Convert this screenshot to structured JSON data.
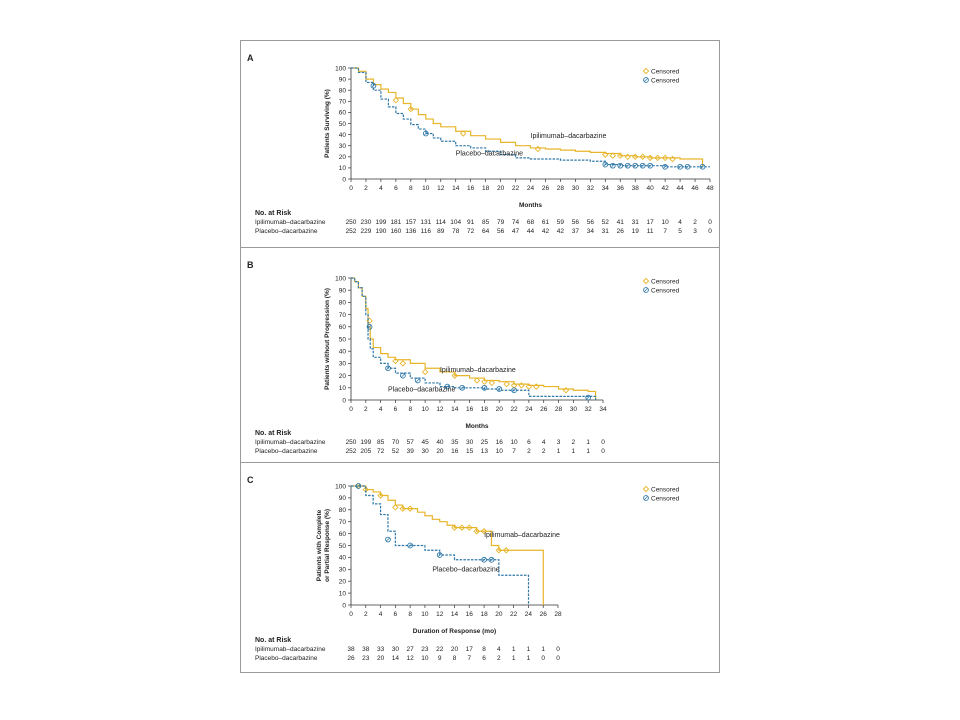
{
  "legend_label": "Censored",
  "risk_header": "No. at Risk",
  "colors": {
    "ipilimumab": "#e7b52a",
    "placebo": "#2f78a8"
  },
  "chart_data": [
    {
      "panel": "A",
      "type": "line",
      "ylabel": "Patients Surviving (%)",
      "xlabel": "Months",
      "xlim": [
        0,
        48
      ],
      "ylim": [
        0,
        100
      ],
      "xticks": [
        0,
        2,
        4,
        6,
        8,
        10,
        12,
        14,
        16,
        18,
        20,
        22,
        24,
        26,
        28,
        30,
        32,
        34,
        36,
        38,
        40,
        42,
        44,
        46,
        48
      ],
      "yticks": [
        0,
        10,
        20,
        30,
        40,
        50,
        60,
        70,
        80,
        90,
        100
      ],
      "legend": "top-right",
      "series": [
        {
          "name": "Ipilimumab–dacarbazine",
          "key": "ipilimumab",
          "dashed": false,
          "x": [
            0,
            1,
            2,
            3,
            4,
            5,
            6,
            7,
            8,
            9,
            10,
            11,
            12,
            14,
            16,
            18,
            20,
            22,
            24,
            26,
            28,
            30,
            32,
            34,
            36,
            38,
            40,
            42,
            44,
            46,
            47
          ],
          "y": [
            100,
            97,
            90,
            85,
            81,
            78,
            73,
            68,
            63,
            58,
            54,
            50,
            47,
            43,
            39,
            36,
            33,
            30,
            28,
            27,
            26,
            25,
            24,
            23,
            21,
            20,
            19,
            19,
            18,
            18,
            11
          ],
          "censored": [
            [
              6,
              71
            ],
            [
              8,
              63
            ],
            [
              15,
              41
            ],
            [
              25,
              27
            ],
            [
              34,
              22
            ],
            [
              35,
              21
            ],
            [
              36,
              21
            ],
            [
              37,
              20
            ],
            [
              38,
              20
            ],
            [
              39,
              20
            ],
            [
              40,
              19
            ],
            [
              41,
              19
            ],
            [
              42,
              19
            ],
            [
              43,
              18
            ]
          ]
        },
        {
          "name": "Placebo–dacarbazine",
          "key": "placebo",
          "dashed": true,
          "x": [
            0,
            1,
            2,
            3,
            4,
            5,
            6,
            7,
            8,
            9,
            10,
            11,
            12,
            14,
            16,
            18,
            20,
            22,
            24,
            26,
            28,
            30,
            32,
            34,
            36,
            38,
            40,
            42,
            44,
            46,
            48
          ],
          "y": [
            100,
            96,
            87,
            80,
            72,
            65,
            59,
            54,
            49,
            45,
            41,
            37,
            34,
            30,
            28,
            25,
            22,
            19,
            18,
            18,
            17,
            17,
            16,
            13,
            12,
            12,
            12,
            11,
            11,
            11,
            11
          ],
          "censored": [
            [
              3,
              84
            ],
            [
              10,
              41
            ],
            [
              34,
              13
            ],
            [
              35,
              12
            ],
            [
              36,
              12
            ],
            [
              37,
              12
            ],
            [
              38,
              12
            ],
            [
              39,
              12
            ],
            [
              40,
              12
            ],
            [
              42,
              11
            ],
            [
              44,
              11
            ],
            [
              45,
              11
            ],
            [
              47,
              11
            ]
          ]
        }
      ],
      "annotations": [
        {
          "text": "Ipilimumab–dacarbazine",
          "x": 24,
          "y": 37
        },
        {
          "text": "Placebo–dacarbazine",
          "x": 14,
          "y": 21
        }
      ],
      "at_risk": {
        "times": [
          0,
          2,
          4,
          6,
          8,
          10,
          12,
          14,
          16,
          18,
          20,
          22,
          24,
          26,
          28,
          30,
          32,
          34,
          36,
          38,
          40,
          42,
          44,
          46,
          48
        ],
        "rows": [
          {
            "label": "Ipilimumab–dacarbazine",
            "values": [
              "250",
              "230",
              "199",
              "181",
              "157",
              "131",
              "114",
              "104",
              "91",
              "85",
              "79",
              "74",
              "68",
              "61",
              "59",
              "56",
              "56",
              "52",
              "41",
              "31",
              "17",
              "10",
              "4",
              "2",
              "0"
            ]
          },
          {
            "label": "Placebo–dacarbazine",
            "values": [
              "252",
              "229",
              "190",
              "160",
              "136",
              "116",
              "89",
              "78",
              "72",
              "64",
              "56",
              "47",
              "44",
              "42",
              "42",
              "37",
              "34",
              "31",
              "26",
              "19",
              "11",
              "7",
              "5",
              "3",
              "0"
            ]
          }
        ]
      }
    },
    {
      "panel": "B",
      "type": "line",
      "ylabel": "Patients without Progression (%)",
      "xlabel": "Months",
      "xlim": [
        0,
        34
      ],
      "ylim": [
        0,
        100
      ],
      "xticks": [
        0,
        2,
        4,
        6,
        8,
        10,
        12,
        14,
        16,
        18,
        20,
        22,
        24,
        26,
        28,
        30,
        32,
        34
      ],
      "yticks": [
        0,
        10,
        20,
        30,
        40,
        50,
        60,
        70,
        80,
        90,
        100
      ],
      "legend": "top-right",
      "series": [
        {
          "name": "Ipilimumab–dacarbazine",
          "key": "ipilimumab",
          "dashed": false,
          "x": [
            0,
            0.5,
            1,
            1.5,
            2,
            2.3,
            2.6,
            3,
            4,
            5,
            6,
            8,
            10,
            12,
            14,
            16,
            18,
            20,
            22,
            24,
            26,
            28,
            30,
            32,
            33
          ],
          "y": [
            100,
            97,
            92,
            85,
            75,
            60,
            50,
            43,
            38,
            35,
            33,
            30,
            26,
            23,
            20,
            18,
            16,
            15,
            13,
            12,
            11,
            9,
            8,
            7,
            0
          ],
          "censored": [
            [
              2.5,
              65
            ],
            [
              6,
              32
            ],
            [
              7,
              30
            ],
            [
              10,
              23
            ],
            [
              14,
              20
            ],
            [
              17,
              16
            ],
            [
              18,
              15
            ],
            [
              19,
              14
            ],
            [
              21,
              13
            ],
            [
              22,
              12
            ],
            [
              23,
              12
            ],
            [
              24,
              11
            ],
            [
              25,
              11
            ],
            [
              29,
              8
            ]
          ]
        },
        {
          "name": "Placebo–dacarbazine",
          "key": "placebo",
          "dashed": true,
          "x": [
            0,
            0.5,
            1,
            1.5,
            2,
            2.3,
            2.6,
            3,
            4,
            5,
            6,
            8,
            10,
            12,
            14,
            16,
            18,
            20,
            22,
            24,
            26,
            32,
            33
          ],
          "y": [
            100,
            97,
            92,
            85,
            70,
            50,
            42,
            35,
            30,
            26,
            22,
            18,
            14,
            11,
            10,
            10,
            9,
            8,
            8,
            3,
            3,
            3,
            0
          ],
          "censored": [
            [
              2.5,
              60
            ],
            [
              5,
              26
            ],
            [
              7,
              20
            ],
            [
              9,
              16
            ],
            [
              13,
              11
            ],
            [
              15,
              10
            ],
            [
              18,
              10
            ],
            [
              20,
              9
            ],
            [
              22,
              8
            ],
            [
              32,
              2
            ]
          ]
        }
      ],
      "annotations": [
        {
          "text": "Ipilimumab–dacarbazine",
          "x": 12,
          "y": 23
        },
        {
          "text": "Placebo–dacarbazine",
          "x": 5,
          "y": 7
        }
      ],
      "at_risk": {
        "times": [
          0,
          2,
          4,
          6,
          8,
          10,
          12,
          14,
          16,
          18,
          20,
          22,
          24,
          26,
          28,
          30,
          32,
          34
        ],
        "rows": [
          {
            "label": "Ipilimumab–dacarbazine",
            "values": [
              "250",
              "199",
              "85",
              "70",
              "57",
              "45",
              "40",
              "35",
              "30",
              "25",
              "16",
              "10",
              "6",
              "4",
              "3",
              "2",
              "1",
              "0"
            ]
          },
          {
            "label": "Placebo–dacarbazine",
            "values": [
              "252",
              "205",
              "72",
              "52",
              "39",
              "30",
              "20",
              "16",
              "15",
              "13",
              "10",
              "7",
              "2",
              "2",
              "1",
              "1",
              "1",
              "0"
            ]
          }
        ]
      }
    },
    {
      "panel": "C",
      "type": "line",
      "ylabel": "Patients with Complete or Partial Response (%)",
      "ylabel_lines": [
        "Patients with Complete",
        "or Partial Response (%)"
      ],
      "xlabel": "Duration of Response (mo)",
      "xlim": [
        0,
        28
      ],
      "ylim": [
        0,
        100
      ],
      "xticks": [
        0,
        2,
        4,
        6,
        8,
        10,
        12,
        14,
        16,
        18,
        20,
        22,
        24,
        26,
        28
      ],
      "yticks": [
        0,
        10,
        20,
        30,
        40,
        50,
        60,
        70,
        80,
        90,
        100
      ],
      "legend": "top-right",
      "series": [
        {
          "name": "Ipilimumab–dacarbazine",
          "key": "ipilimumab",
          "dashed": false,
          "x": [
            0,
            2,
            3,
            4,
            5,
            6,
            7,
            8,
            9,
            10,
            11,
            12,
            13,
            14,
            15,
            16,
            17,
            18,
            19,
            20,
            21,
            22,
            24,
            26,
            26.01
          ],
          "y": [
            100,
            97,
            95,
            92,
            88,
            84,
            81,
            81,
            78,
            75,
            72,
            70,
            67,
            65,
            65,
            65,
            62,
            62,
            50,
            46,
            46,
            46,
            46,
            46,
            0
          ],
          "censored": [
            [
              1,
              100
            ],
            [
              2,
              97
            ],
            [
              4,
              92
            ],
            [
              6,
              82
            ],
            [
              7,
              81
            ],
            [
              8,
              81
            ],
            [
              14,
              65
            ],
            [
              15,
              65
            ],
            [
              16,
              65
            ],
            [
              17,
              62
            ],
            [
              18,
              62
            ],
            [
              20,
              46
            ],
            [
              21,
              46
            ]
          ]
        },
        {
          "name": "Placebo–dacarbazine",
          "key": "placebo",
          "dashed": true,
          "x": [
            0,
            2,
            3,
            4,
            5,
            6,
            7,
            8,
            9,
            10,
            12,
            14,
            16,
            18,
            19,
            20,
            22,
            24,
            24.01
          ],
          "y": [
            100,
            92,
            85,
            76,
            62,
            50,
            50,
            50,
            50,
            46,
            42,
            38,
            38,
            38,
            38,
            25,
            25,
            25,
            0
          ],
          "censored": [
            [
              1,
              100
            ],
            [
              5,
              55
            ],
            [
              8,
              50
            ],
            [
              12,
              42
            ],
            [
              18,
              38
            ],
            [
              19,
              38
            ]
          ]
        }
      ],
      "annotations": [
        {
          "text": "Ipilimumab–dacarbazine",
          "x": 18,
          "y": 57
        },
        {
          "text": "Placebo–dacarbazine",
          "x": 11,
          "y": 28
        }
      ],
      "at_risk": {
        "times": [
          0,
          2,
          4,
          6,
          8,
          10,
          12,
          14,
          16,
          18,
          20,
          22,
          24,
          26,
          28
        ],
        "rows": [
          {
            "label": "Ipilimumab–dacarbazine",
            "values": [
              "38",
              "38",
              "33",
              "30",
              "27",
              "23",
              "22",
              "20",
              "17",
              "8",
              "4",
              "1",
              "1",
              "1",
              "0"
            ]
          },
          {
            "label": "Placebo–dacarbazine",
            "values": [
              "26",
              "23",
              "20",
              "14",
              "12",
              "10",
              "9",
              "8",
              "7",
              "6",
              "2",
              "1",
              "1",
              "0",
              "0"
            ]
          }
        ]
      }
    }
  ]
}
